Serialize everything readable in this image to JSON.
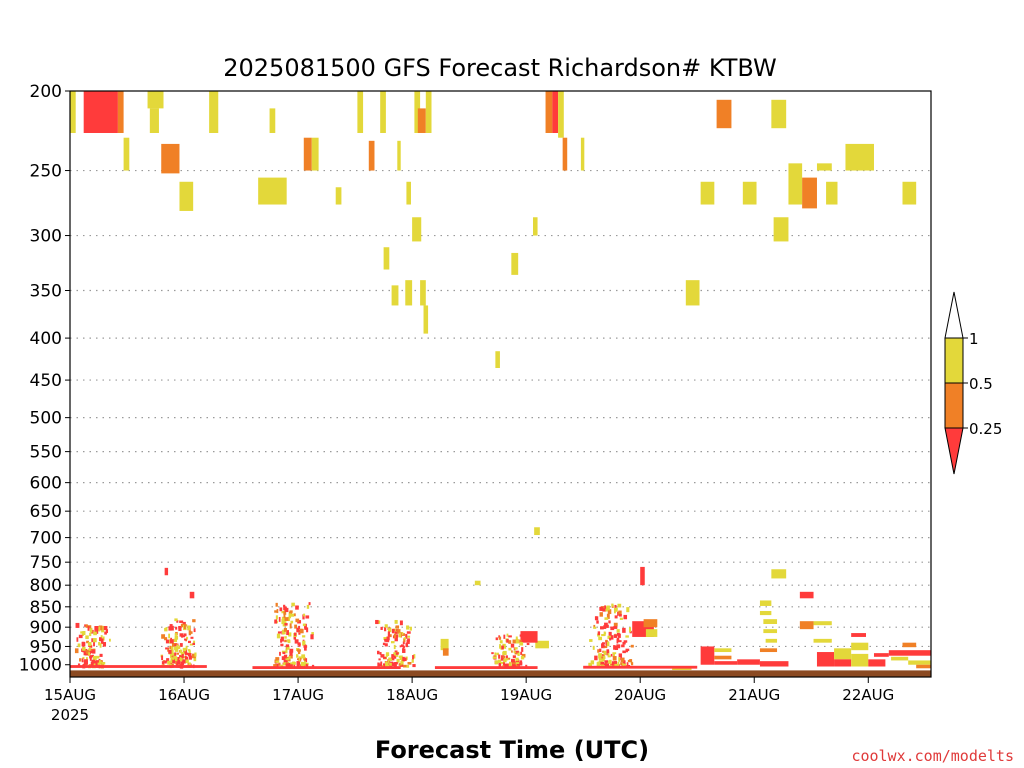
{
  "chart_data": {
    "type": "heatmap",
    "title": "2025081500 GFS Forecast Richardson# KTBW",
    "xlabel": "Forecast Time (UTC)",
    "credit": "coolwx.com/modelts",
    "y_scale": "log",
    "ylim": [
      1035,
      200
    ],
    "ytick_labels": [
      "200",
      "250",
      "300",
      "350",
      "400",
      "450",
      "500",
      "550",
      "600",
      "650",
      "700",
      "750",
      "800",
      "850",
      "900",
      "950",
      "1000"
    ],
    "ytick_values": [
      200,
      250,
      300,
      350,
      400,
      450,
      500,
      550,
      600,
      650,
      700,
      750,
      800,
      850,
      900,
      950,
      1000
    ],
    "xlim": [
      0,
      7.55
    ],
    "xtick_labels": [
      "15AUG",
      "16AUG",
      "17AUG",
      "18AUG",
      "19AUG",
      "20AUG",
      "21AUG",
      "22AUG"
    ],
    "xtick_values": [
      0,
      1,
      2,
      3,
      4,
      5,
      6,
      7
    ],
    "x_year_label": "2025",
    "grid": "dotted horizontal at pressure levels",
    "colorbar": {
      "labels": [
        "1",
        "0.5",
        "0.25"
      ],
      "colors": {
        "lt_0.25": "#ff3b3b",
        "0.25_0.5": "#f08026",
        "0.5_1": "#e3d83a",
        "gt_1": "#ffffff"
      }
    },
    "ground_color": "#8b4a22",
    "regions": [
      {
        "t0": 0.12,
        "t1": 0.42,
        "p0": 200,
        "p1": 225,
        "cls": "lt_0.25"
      },
      {
        "t0": 0.0,
        "t1": 0.05,
        "p0": 200,
        "p1": 225,
        "cls": "0.5_1"
      },
      {
        "t0": 0.42,
        "t1": 0.47,
        "p0": 200,
        "p1": 225,
        "cls": "0.25_0.5"
      },
      {
        "t0": 0.47,
        "t1": 0.52,
        "p0": 228,
        "p1": 250,
        "cls": "0.5_1"
      },
      {
        "t0": 0.68,
        "t1": 0.82,
        "p0": 200,
        "p1": 210,
        "cls": "0.5_1"
      },
      {
        "t0": 0.7,
        "t1": 0.78,
        "p0": 210,
        "p1": 225,
        "cls": "0.5_1"
      },
      {
        "t0": 0.8,
        "t1": 0.96,
        "p0": 232,
        "p1": 252,
        "cls": "0.25_0.5"
      },
      {
        "t0": 0.96,
        "t1": 1.08,
        "p0": 258,
        "p1": 280,
        "cls": "0.5_1"
      },
      {
        "t0": 1.22,
        "t1": 1.3,
        "p0": 200,
        "p1": 225,
        "cls": "0.5_1"
      },
      {
        "t0": 1.65,
        "t1": 1.9,
        "p0": 255,
        "p1": 275,
        "cls": "0.5_1"
      },
      {
        "t0": 1.75,
        "t1": 1.8,
        "p0": 210,
        "p1": 225,
        "cls": "0.5_1"
      },
      {
        "t0": 2.05,
        "t1": 2.12,
        "p0": 228,
        "p1": 250,
        "cls": "0.25_0.5"
      },
      {
        "t0": 2.12,
        "t1": 2.18,
        "p0": 228,
        "p1": 250,
        "cls": "0.5_1"
      },
      {
        "t0": 2.33,
        "t1": 2.38,
        "p0": 262,
        "p1": 275,
        "cls": "0.5_1"
      },
      {
        "t0": 2.52,
        "t1": 2.57,
        "p0": 200,
        "p1": 225,
        "cls": "0.5_1"
      },
      {
        "t0": 2.62,
        "t1": 2.67,
        "p0": 230,
        "p1": 250,
        "cls": "0.25_0.5"
      },
      {
        "t0": 2.72,
        "t1": 2.77,
        "p0": 200,
        "p1": 225,
        "cls": "0.5_1"
      },
      {
        "t0": 2.87,
        "t1": 2.9,
        "p0": 230,
        "p1": 250,
        "cls": "0.5_1"
      },
      {
        "t0": 3.02,
        "t1": 3.07,
        "p0": 200,
        "p1": 225,
        "cls": "0.5_1"
      },
      {
        "t0": 3.05,
        "t1": 3.12,
        "p0": 210,
        "p1": 225,
        "cls": "0.25_0.5"
      },
      {
        "t0": 3.12,
        "t1": 3.17,
        "p0": 200,
        "p1": 225,
        "cls": "0.5_1"
      },
      {
        "t0": 2.95,
        "t1": 2.99,
        "p0": 258,
        "p1": 275,
        "cls": "0.5_1"
      },
      {
        "t0": 3.0,
        "t1": 3.08,
        "p0": 285,
        "p1": 305,
        "cls": "0.5_1"
      },
      {
        "t0": 2.75,
        "t1": 2.8,
        "p0": 310,
        "p1": 330,
        "cls": "0.5_1"
      },
      {
        "t0": 2.82,
        "t1": 2.88,
        "p0": 345,
        "p1": 365,
        "cls": "0.5_1"
      },
      {
        "t0": 2.94,
        "t1": 3.0,
        "p0": 340,
        "p1": 365,
        "cls": "0.5_1"
      },
      {
        "t0": 3.07,
        "t1": 3.12,
        "p0": 340,
        "p1": 365,
        "cls": "0.5_1"
      },
      {
        "t0": 3.1,
        "t1": 3.14,
        "p0": 365,
        "p1": 395,
        "cls": "0.5_1"
      },
      {
        "t0": 3.87,
        "t1": 3.93,
        "p0": 315,
        "p1": 335,
        "cls": "0.5_1"
      },
      {
        "t0": 4.06,
        "t1": 4.1,
        "p0": 285,
        "p1": 300,
        "cls": "0.5_1"
      },
      {
        "t0": 3.73,
        "t1": 3.77,
        "p0": 415,
        "p1": 435,
        "cls": "0.5_1"
      },
      {
        "t0": 4.17,
        "t1": 4.23,
        "p0": 200,
        "p1": 225,
        "cls": "0.25_0.5"
      },
      {
        "t0": 4.23,
        "t1": 4.28,
        "p0": 200,
        "p1": 225,
        "cls": "lt_0.25"
      },
      {
        "t0": 4.28,
        "t1": 4.33,
        "p0": 200,
        "p1": 228,
        "cls": "0.5_1"
      },
      {
        "t0": 4.32,
        "t1": 4.36,
        "p0": 228,
        "p1": 250,
        "cls": "0.25_0.5"
      },
      {
        "t0": 4.48,
        "t1": 4.51,
        "p0": 228,
        "p1": 250,
        "cls": "0.5_1"
      },
      {
        "t0": 5.4,
        "t1": 5.52,
        "p0": 340,
        "p1": 365,
        "cls": "0.5_1"
      },
      {
        "t0": 5.53,
        "t1": 5.65,
        "p0": 258,
        "p1": 275,
        "cls": "0.5_1"
      },
      {
        "t0": 5.67,
        "t1": 5.8,
        "p0": 205,
        "p1": 222,
        "cls": "0.25_0.5"
      },
      {
        "t0": 5.9,
        "t1": 6.02,
        "p0": 258,
        "p1": 275,
        "cls": "0.5_1"
      },
      {
        "t0": 6.15,
        "t1": 6.28,
        "p0": 205,
        "p1": 222,
        "cls": "0.5_1"
      },
      {
        "t0": 6.17,
        "t1": 6.3,
        "p0": 285,
        "p1": 305,
        "cls": "0.5_1"
      },
      {
        "t0": 6.3,
        "t1": 6.42,
        "p0": 245,
        "p1": 275,
        "cls": "0.5_1"
      },
      {
        "t0": 6.42,
        "t1": 6.55,
        "p0": 255,
        "p1": 278,
        "cls": "0.25_0.5"
      },
      {
        "t0": 6.55,
        "t1": 6.68,
        "p0": 245,
        "p1": 250,
        "cls": "0.5_1"
      },
      {
        "t0": 6.63,
        "t1": 6.73,
        "p0": 258,
        "p1": 275,
        "cls": "0.5_1"
      },
      {
        "t0": 6.8,
        "t1": 7.05,
        "p0": 232,
        "p1": 250,
        "cls": "0.5_1"
      },
      {
        "t0": 7.3,
        "t1": 7.42,
        "p0": 258,
        "p1": 275,
        "cls": "0.5_1"
      },
      {
        "t0": 4.07,
        "t1": 4.12,
        "p0": 680,
        "p1": 695,
        "cls": "0.5_1"
      },
      {
        "t0": 3.55,
        "t1": 3.6,
        "p0": 790,
        "p1": 800,
        "cls": "0.5_1"
      },
      {
        "t0": 0.83,
        "t1": 0.86,
        "p0": 762,
        "p1": 778,
        "cls": "lt_0.25"
      },
      {
        "t0": 1.05,
        "t1": 1.09,
        "p0": 815,
        "p1": 830,
        "cls": "lt_0.25"
      },
      {
        "t0": 5.0,
        "t1": 5.04,
        "p0": 760,
        "p1": 800,
        "cls": "lt_0.25"
      },
      {
        "t0": 6.15,
        "t1": 6.28,
        "p0": 765,
        "p1": 785,
        "cls": "0.5_1"
      },
      {
        "t0": 6.05,
        "t1": 6.15,
        "p0": 835,
        "p1": 848,
        "cls": "0.5_1"
      },
      {
        "t0": 6.05,
        "t1": 6.15,
        "p0": 860,
        "p1": 870,
        "cls": "0.5_1"
      },
      {
        "t0": 6.08,
        "t1": 6.2,
        "p0": 880,
        "p1": 892,
        "cls": "0.5_1"
      },
      {
        "t0": 6.08,
        "t1": 6.2,
        "p0": 905,
        "p1": 915,
        "cls": "0.5_1"
      },
      {
        "t0": 6.1,
        "t1": 6.2,
        "p0": 930,
        "p1": 940,
        "cls": "0.5_1"
      },
      {
        "t0": 6.05,
        "t1": 6.2,
        "p0": 955,
        "p1": 965,
        "cls": "0.25_0.5"
      },
      {
        "t0": 6.4,
        "t1": 6.52,
        "p0": 815,
        "p1": 830,
        "cls": "lt_0.25"
      },
      {
        "t0": 6.4,
        "t1": 6.52,
        "p0": 885,
        "p1": 905,
        "cls": "0.25_0.5"
      },
      {
        "t0": 6.52,
        "t1": 6.68,
        "p0": 885,
        "p1": 895,
        "cls": "0.5_1"
      },
      {
        "t0": 6.52,
        "t1": 6.68,
        "p0": 930,
        "p1": 940,
        "cls": "0.5_1"
      },
      {
        "t0": 5.53,
        "t1": 5.65,
        "p0": 950,
        "p1": 1000,
        "cls": "lt_0.25"
      },
      {
        "t0": 5.65,
        "t1": 5.8,
        "p0": 955,
        "p1": 965,
        "cls": "0.5_1"
      },
      {
        "t0": 5.65,
        "t1": 5.8,
        "p0": 975,
        "p1": 985,
        "cls": "0.25_0.5"
      },
      {
        "t0": 5.65,
        "t1": 5.85,
        "p0": 990,
        "p1": 1000,
        "cls": "lt_0.25"
      },
      {
        "t0": 5.85,
        "t1": 6.05,
        "p0": 985,
        "p1": 1000,
        "cls": "lt_0.25"
      },
      {
        "t0": 6.05,
        "t1": 6.3,
        "p0": 990,
        "p1": 1005,
        "cls": "lt_0.25"
      },
      {
        "t0": 6.55,
        "t1": 6.7,
        "p0": 965,
        "p1": 1005,
        "cls": "lt_0.25"
      },
      {
        "t0": 6.7,
        "t1": 6.85,
        "p0": 955,
        "p1": 985,
        "cls": "0.5_1"
      },
      {
        "t0": 6.7,
        "t1": 6.85,
        "p0": 985,
        "p1": 1005,
        "cls": "lt_0.25"
      },
      {
        "t0": 6.85,
        "t1": 7.0,
        "p0": 940,
        "p1": 960,
        "cls": "0.5_1"
      },
      {
        "t0": 6.85,
        "t1": 6.98,
        "p0": 915,
        "p1": 925,
        "cls": "lt_0.25"
      },
      {
        "t0": 6.85,
        "t1": 7.0,
        "p0": 970,
        "p1": 1005,
        "cls": "0.5_1"
      },
      {
        "t0": 7.0,
        "t1": 7.15,
        "p0": 985,
        "p1": 1005,
        "cls": "lt_0.25"
      },
      {
        "t0": 7.05,
        "t1": 7.18,
        "p0": 968,
        "p1": 978,
        "cls": "lt_0.25"
      },
      {
        "t0": 7.18,
        "t1": 7.55,
        "p0": 960,
        "p1": 975,
        "cls": "lt_0.25"
      },
      {
        "t0": 7.2,
        "t1": 7.35,
        "p0": 978,
        "p1": 988,
        "cls": "0.5_1"
      },
      {
        "t0": 7.3,
        "t1": 7.42,
        "p0": 940,
        "p1": 952,
        "cls": "0.25_0.5"
      },
      {
        "t0": 7.35,
        "t1": 7.55,
        "p0": 988,
        "p1": 1000,
        "cls": "0.5_1"
      },
      {
        "t0": 7.42,
        "t1": 7.55,
        "p0": 1000,
        "p1": 1010,
        "cls": "0.25_0.5"
      },
      {
        "t0": 5.28,
        "t1": 5.45,
        "p0": 1005,
        "p1": 1015,
        "cls": "0.5_1"
      },
      {
        "t0": 4.93,
        "t1": 5.12,
        "p0": 885,
        "p1": 925,
        "cls": "lt_0.25"
      },
      {
        "t0": 5.03,
        "t1": 5.15,
        "p0": 880,
        "p1": 900,
        "cls": "0.25_0.5"
      },
      {
        "t0": 5.05,
        "t1": 5.15,
        "p0": 905,
        "p1": 925,
        "cls": "0.5_1"
      },
      {
        "t0": 4.08,
        "t1": 4.2,
        "p0": 935,
        "p1": 955,
        "cls": "0.5_1"
      },
      {
        "t0": 3.25,
        "t1": 3.32,
        "p0": 930,
        "p1": 960,
        "cls": "0.5_1"
      },
      {
        "t0": 3.27,
        "t1": 3.32,
        "p0": 955,
        "p1": 975,
        "cls": "0.25_0.5"
      },
      {
        "t0": 3.95,
        "t1": 4.1,
        "p0": 910,
        "p1": 940,
        "cls": "lt_0.25"
      }
    ],
    "scatter_clusters": [
      {
        "tc": 0.2,
        "pc": 970,
        "tw": 0.35,
        "plo": 895,
        "phi": 1005,
        "n": 110,
        "seed": 11
      },
      {
        "tc": 0.95,
        "pc": 950,
        "tw": 0.35,
        "plo": 880,
        "phi": 1005,
        "n": 150,
        "seed": 23
      },
      {
        "tc": 1.95,
        "pc": 940,
        "tw": 0.4,
        "plo": 840,
        "phi": 1005,
        "n": 150,
        "seed": 37
      },
      {
        "tc": 2.85,
        "pc": 955,
        "tw": 0.35,
        "plo": 885,
        "phi": 1005,
        "n": 110,
        "seed": 41
      },
      {
        "tc": 3.85,
        "pc": 970,
        "tw": 0.35,
        "plo": 920,
        "phi": 1005,
        "n": 90,
        "seed": 53
      },
      {
        "tc": 4.75,
        "pc": 950,
        "tw": 0.4,
        "plo": 845,
        "phi": 1005,
        "n": 150,
        "seed": 67
      },
      {
        "tc": 0.0,
        "pc": 200,
        "tw": 0.05,
        "plo": 200,
        "phi": 210,
        "n": 0,
        "seed": 5
      }
    ],
    "surface_bands": [
      {
        "t0": 0.0,
        "t1": 1.2,
        "p": 1005
      },
      {
        "t0": 1.6,
        "t1": 2.9,
        "p": 1008
      },
      {
        "t0": 3.2,
        "t1": 4.1,
        "p": 1008
      },
      {
        "t0": 4.5,
        "t1": 5.5,
        "p": 1007
      }
    ]
  }
}
